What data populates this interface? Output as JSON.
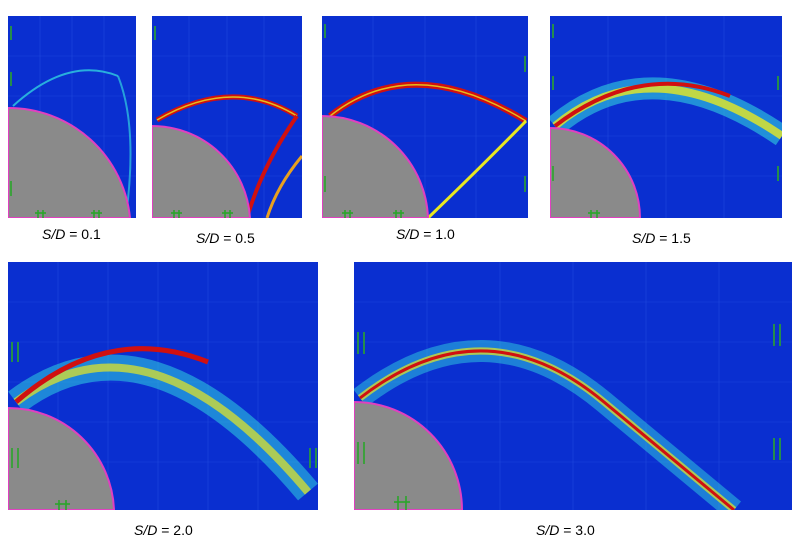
{
  "colors": {
    "background": "#0a2fd0",
    "grid": "#2a56e6",
    "cylinder": "#8a8a8a",
    "cylinder_edge": "#e040c0",
    "marker": "#2aa52a",
    "shock_red": "#d01010",
    "shock_yellow": "#e8e820",
    "shock_cyan": "#30d0e0"
  },
  "panels": [
    {
      "id": "p1",
      "sd_label": "S/D",
      "value_label": " = 0.1"
    },
    {
      "id": "p2",
      "sd_label": "S/D",
      "value_label": " =  0.5"
    },
    {
      "id": "p3",
      "sd_label": "S/D",
      "value_label": " = 1.0"
    },
    {
      "id": "p4",
      "sd_label": "S/D",
      "value_label": " = 1.5"
    },
    {
      "id": "p5",
      "sd_label": "S/D",
      "value_label": " = 2.0"
    },
    {
      "id": "p6",
      "sd_label": "S/D",
      "value_label": " = 3.0"
    }
  ]
}
